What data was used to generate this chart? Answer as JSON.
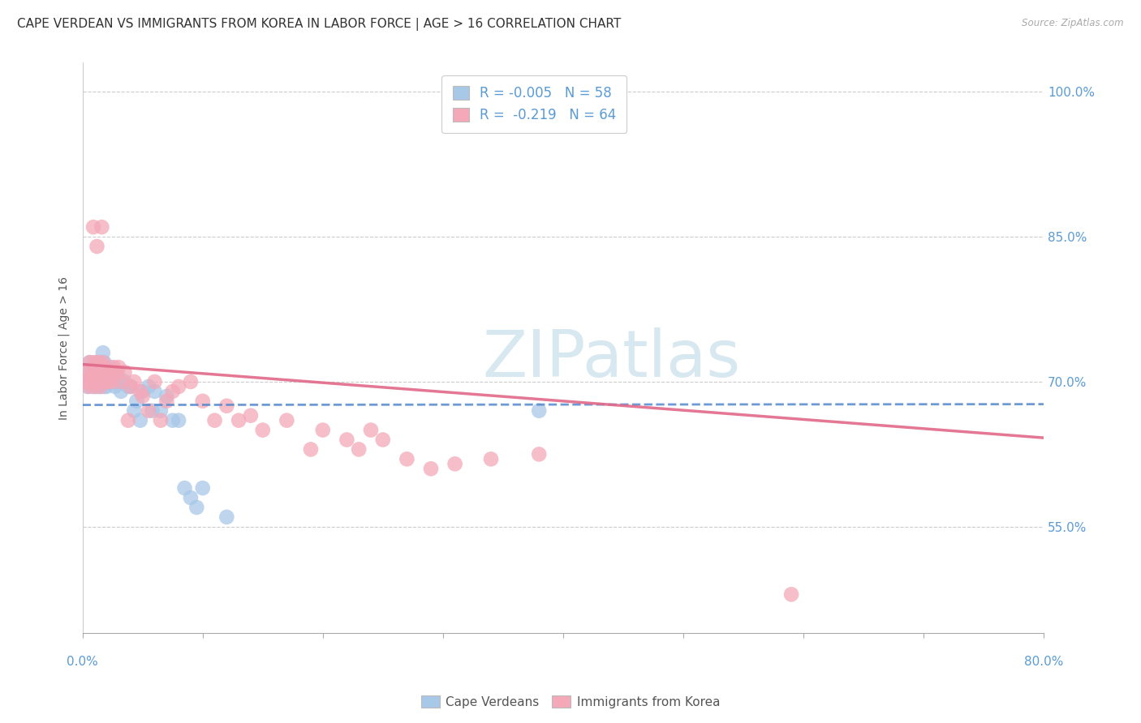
{
  "title": "CAPE VERDEAN VS IMMIGRANTS FROM KOREA IN LABOR FORCE | AGE > 16 CORRELATION CHART",
  "source": "Source: ZipAtlas.com",
  "ylabel": "In Labor Force | Age > 16",
  "ytick_labels": [
    "55.0%",
    "70.0%",
    "85.0%",
    "100.0%"
  ],
  "ytick_values": [
    0.55,
    0.7,
    0.85,
    1.0
  ],
  "xlim": [
    0.0,
    0.8
  ],
  "ylim": [
    0.44,
    1.03
  ],
  "legend_r_blue": "-0.005",
  "legend_n_blue": "58",
  "legend_r_pink": "-0.219",
  "legend_n_pink": "64",
  "blue_color": "#a8c8e8",
  "pink_color": "#f4a8b8",
  "line_blue_color": "#5588cc",
  "line_pink_color": "#e06888",
  "watermark_color": "#d8e8f0",
  "grid_color": "#cccccc",
  "background_color": "#ffffff",
  "title_fontsize": 11,
  "axis_label_fontsize": 10,
  "tick_fontsize": 11,
  "legend_fontsize": 12,
  "blue_line_intercept": 0.676,
  "blue_line_slope": 0.001,
  "pink_line_intercept": 0.718,
  "pink_line_slope": -0.095,
  "blue_points_x": [
    0.003,
    0.004,
    0.005,
    0.006,
    0.007,
    0.008,
    0.009,
    0.01,
    0.01,
    0.011,
    0.011,
    0.012,
    0.012,
    0.013,
    0.013,
    0.014,
    0.014,
    0.015,
    0.015,
    0.016,
    0.016,
    0.017,
    0.017,
    0.018,
    0.018,
    0.019,
    0.02,
    0.02,
    0.021,
    0.022,
    0.023,
    0.024,
    0.025,
    0.026,
    0.027,
    0.028,
    0.03,
    0.032,
    0.035,
    0.038,
    0.04,
    0.043,
    0.045,
    0.048,
    0.05,
    0.055,
    0.058,
    0.06,
    0.065,
    0.07,
    0.075,
    0.08,
    0.085,
    0.09,
    0.095,
    0.1,
    0.12,
    0.38
  ],
  "blue_points_y": [
    0.7,
    0.695,
    0.71,
    0.72,
    0.705,
    0.695,
    0.715,
    0.71,
    0.7,
    0.695,
    0.71,
    0.72,
    0.7,
    0.715,
    0.695,
    0.705,
    0.7,
    0.72,
    0.695,
    0.715,
    0.7,
    0.71,
    0.73,
    0.695,
    0.72,
    0.71,
    0.705,
    0.695,
    0.7,
    0.71,
    0.715,
    0.705,
    0.7,
    0.71,
    0.695,
    0.7,
    0.705,
    0.69,
    0.7,
    0.695,
    0.695,
    0.67,
    0.68,
    0.66,
    0.69,
    0.695,
    0.67,
    0.69,
    0.67,
    0.685,
    0.66,
    0.66,
    0.59,
    0.58,
    0.57,
    0.59,
    0.56,
    0.67
  ],
  "pink_points_x": [
    0.003,
    0.004,
    0.005,
    0.006,
    0.007,
    0.008,
    0.009,
    0.01,
    0.01,
    0.011,
    0.012,
    0.012,
    0.013,
    0.014,
    0.015,
    0.016,
    0.017,
    0.018,
    0.018,
    0.019,
    0.02,
    0.021,
    0.022,
    0.023,
    0.025,
    0.026,
    0.028,
    0.03,
    0.032,
    0.035,
    0.038,
    0.04,
    0.043,
    0.048,
    0.05,
    0.055,
    0.06,
    0.065,
    0.07,
    0.075,
    0.08,
    0.09,
    0.1,
    0.11,
    0.12,
    0.13,
    0.14,
    0.15,
    0.17,
    0.19,
    0.2,
    0.22,
    0.23,
    0.24,
    0.25,
    0.27,
    0.29,
    0.31,
    0.34,
    0.38,
    0.009,
    0.012,
    0.016,
    0.59
  ],
  "pink_points_y": [
    0.7,
    0.71,
    0.695,
    0.72,
    0.705,
    0.71,
    0.7,
    0.72,
    0.695,
    0.705,
    0.715,
    0.7,
    0.72,
    0.705,
    0.695,
    0.71,
    0.72,
    0.705,
    0.7,
    0.715,
    0.71,
    0.7,
    0.705,
    0.71,
    0.7,
    0.715,
    0.71,
    0.715,
    0.7,
    0.71,
    0.66,
    0.695,
    0.7,
    0.69,
    0.685,
    0.67,
    0.7,
    0.66,
    0.68,
    0.69,
    0.695,
    0.7,
    0.68,
    0.66,
    0.675,
    0.66,
    0.665,
    0.65,
    0.66,
    0.63,
    0.65,
    0.64,
    0.63,
    0.65,
    0.64,
    0.62,
    0.61,
    0.615,
    0.62,
    0.625,
    0.86,
    0.84,
    0.86,
    0.48
  ]
}
